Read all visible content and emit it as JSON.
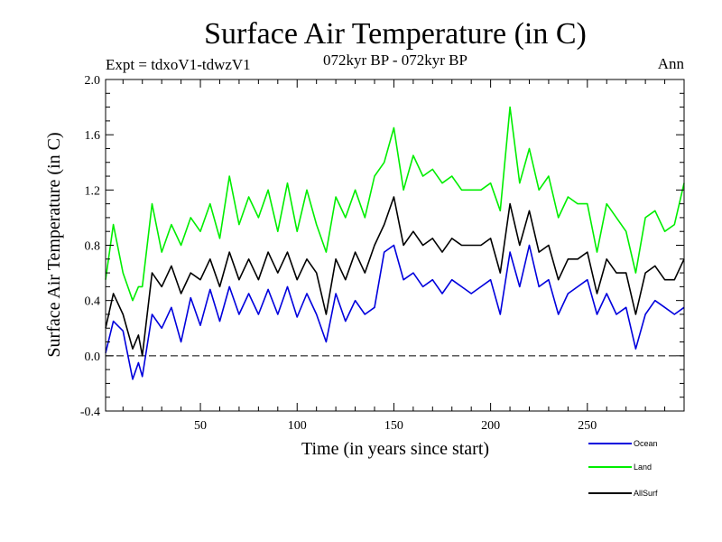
{
  "chart_data": {
    "type": "line",
    "title": "Surface Air Temperature (in C)",
    "subtitle_left": "Expt = tdxoV1-tdwzV1",
    "subtitle_center": "072kyr BP - 072kyr BP",
    "subtitle_right": "Ann",
    "xlabel": "Time (in years since start)",
    "ylabel": "Surface Air Temperature (in C)",
    "xlim": [
      1,
      300
    ],
    "ylim": [
      -0.4,
      2.0
    ],
    "xticks": [
      50,
      100,
      150,
      200,
      250
    ],
    "xtick_labels": [
      "50",
      "100",
      "150",
      "200",
      "250"
    ],
    "yticks": [
      -0.4,
      0.0,
      0.4,
      0.8,
      1.2,
      1.6,
      2.0
    ],
    "ytick_labels": [
      "-0.4",
      "0.0",
      "0.4",
      "0.8",
      "1.2",
      "1.6",
      "2.0"
    ],
    "zero_line": 0.0,
    "series": [
      {
        "name": "Ocean",
        "color": "#0000dd",
        "x": [
          1,
          5,
          10,
          15,
          18,
          20,
          25,
          30,
          35,
          40,
          45,
          50,
          55,
          60,
          65,
          70,
          75,
          80,
          85,
          90,
          95,
          100,
          105,
          110,
          115,
          120,
          125,
          130,
          135,
          140,
          145,
          150,
          155,
          160,
          165,
          170,
          175,
          180,
          185,
          190,
          195,
          200,
          205,
          210,
          215,
          220,
          225,
          230,
          235,
          240,
          245,
          250,
          255,
          260,
          265,
          270,
          275,
          280,
          285,
          290,
          295,
          300
        ],
        "values": [
          0.02,
          0.25,
          0.18,
          -0.17,
          -0.05,
          -0.15,
          0.3,
          0.2,
          0.35,
          0.1,
          0.42,
          0.22,
          0.48,
          0.25,
          0.5,
          0.3,
          0.45,
          0.3,
          0.48,
          0.3,
          0.5,
          0.28,
          0.45,
          0.3,
          0.1,
          0.45,
          0.25,
          0.4,
          0.3,
          0.35,
          0.75,
          0.8,
          0.55,
          0.6,
          0.5,
          0.55,
          0.45,
          0.55,
          0.5,
          0.45,
          0.5,
          0.55,
          0.3,
          0.75,
          0.5,
          0.8,
          0.5,
          0.55,
          0.3,
          0.45,
          0.5,
          0.55,
          0.3,
          0.45,
          0.3,
          0.35,
          0.05,
          0.3,
          0.4,
          0.35,
          0.3,
          0.35
        ]
      },
      {
        "name": "Land",
        "color": "#00ee00",
        "x": [
          1,
          5,
          10,
          15,
          18,
          20,
          25,
          30,
          35,
          40,
          45,
          50,
          55,
          60,
          65,
          70,
          75,
          80,
          85,
          90,
          95,
          100,
          105,
          110,
          115,
          120,
          125,
          130,
          135,
          140,
          145,
          150,
          155,
          160,
          165,
          170,
          175,
          180,
          185,
          190,
          195,
          200,
          205,
          210,
          215,
          220,
          225,
          230,
          235,
          240,
          245,
          250,
          255,
          260,
          265,
          270,
          275,
          280,
          285,
          290,
          295,
          300
        ],
        "values": [
          0.55,
          0.95,
          0.6,
          0.4,
          0.5,
          0.5,
          1.1,
          0.75,
          0.95,
          0.8,
          1.0,
          0.9,
          1.1,
          0.85,
          1.3,
          0.95,
          1.15,
          1.0,
          1.2,
          0.9,
          1.25,
          0.9,
          1.2,
          0.95,
          0.75,
          1.15,
          1.0,
          1.2,
          1.0,
          1.3,
          1.4,
          1.65,
          1.2,
          1.45,
          1.3,
          1.35,
          1.25,
          1.3,
          1.2,
          1.2,
          1.2,
          1.25,
          1.05,
          1.8,
          1.25,
          1.5,
          1.2,
          1.3,
          1.0,
          1.15,
          1.1,
          1.1,
          0.75,
          1.1,
          1.0,
          0.9,
          0.6,
          1.0,
          1.05,
          0.9,
          0.95,
          1.25
        ]
      },
      {
        "name": "AllSurf",
        "color": "#000000",
        "x": [
          1,
          5,
          10,
          15,
          18,
          20,
          25,
          30,
          35,
          40,
          45,
          50,
          55,
          60,
          65,
          70,
          75,
          80,
          85,
          90,
          95,
          100,
          105,
          110,
          115,
          120,
          125,
          130,
          135,
          140,
          145,
          150,
          155,
          160,
          165,
          170,
          175,
          180,
          185,
          190,
          195,
          200,
          205,
          210,
          215,
          220,
          225,
          230,
          235,
          240,
          245,
          250,
          255,
          260,
          265,
          270,
          275,
          280,
          285,
          290,
          295,
          300
        ],
        "values": [
          0.2,
          0.45,
          0.3,
          0.05,
          0.15,
          0.0,
          0.6,
          0.5,
          0.65,
          0.45,
          0.6,
          0.55,
          0.7,
          0.5,
          0.75,
          0.55,
          0.7,
          0.55,
          0.75,
          0.6,
          0.75,
          0.55,
          0.7,
          0.6,
          0.3,
          0.7,
          0.55,
          0.75,
          0.6,
          0.8,
          0.95,
          1.15,
          0.8,
          0.9,
          0.8,
          0.85,
          0.75,
          0.85,
          0.8,
          0.8,
          0.8,
          0.85,
          0.6,
          1.1,
          0.8,
          1.05,
          0.75,
          0.8,
          0.55,
          0.7,
          0.7,
          0.75,
          0.45,
          0.7,
          0.6,
          0.6,
          0.3,
          0.6,
          0.65,
          0.55,
          0.55,
          0.7
        ]
      }
    ],
    "legend_position": "bottom-right"
  }
}
